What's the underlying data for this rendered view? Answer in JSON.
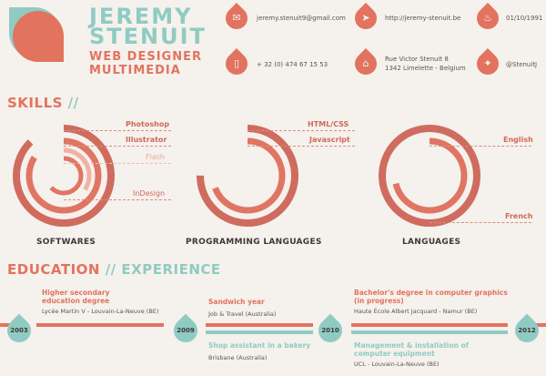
{
  "header": {
    "first_name": "JEREMY",
    "last_name": "STENUIT",
    "role1": "WEB DESIGNER",
    "role2": "MULTIMEDIA"
  },
  "contacts": [
    {
      "icon": "mail-icon",
      "text": "jeremy.stenuit9@gmail.com"
    },
    {
      "icon": "cursor-icon",
      "text": "http://jeremy-stenuit.be"
    },
    {
      "icon": "birthday-icon",
      "text": "01/10/1991"
    },
    {
      "icon": "phone-icon",
      "text": "+ 32 (0) 474 67 15 53"
    },
    {
      "icon": "home-icon",
      "line1": "Rue Victor Stenuit 8",
      "line2": "1342 Limelette - Belgium"
    },
    {
      "icon": "twitter-icon",
      "text": "@StenuitJ"
    }
  ],
  "skills": {
    "heading": "SKILLS",
    "sep": "//",
    "groups": [
      {
        "name": "SOFTWARES",
        "items": [
          "Photoshop",
          "Illustrator",
          "Flash",
          "InDesign"
        ]
      },
      {
        "name": "PROGRAMMING LANGUAGES",
        "items": [
          "HTML/CSS",
          "Javascript"
        ]
      },
      {
        "name": "LANGUAGES",
        "items": [
          "English",
          "French"
        ]
      }
    ]
  },
  "education": {
    "heading1": "EDUCATION",
    "sep": "//",
    "heading2": "EXPERIENCE",
    "years": [
      "2003",
      "2009",
      "2010",
      "2012"
    ],
    "edu": [
      {
        "title1": "Higher secondary",
        "title2": "education degree",
        "sub": "Lycée Martin V - Louvain-La-Neuve (BE)"
      },
      {
        "title1": "Sandwich year",
        "sub": "Job & Travel (Australia)"
      },
      {
        "title1": "Bachelor's degree in computer graphics",
        "title2": "(in progress)",
        "sub": "Haute École Albert Jacquard - Namur (BE)"
      }
    ],
    "exp": [
      {
        "title1": "Shop assistant in a bakery",
        "sub": "Brisbane (Australia)"
      },
      {
        "title1": "Management & installation of",
        "title2": "computer equipment",
        "sub": "UCL - Louvain-La-Neuve (BE)"
      }
    ]
  },
  "colors": {
    "accent": "#e2735f",
    "teal": "#8fcbc3",
    "background": "#f5f1ec"
  }
}
